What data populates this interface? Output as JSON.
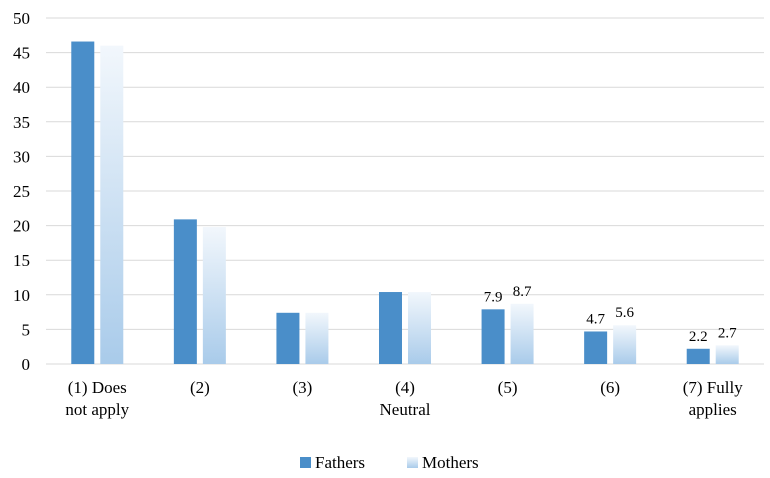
{
  "chart_data": {
    "type": "bar",
    "categories": [
      [
        "(1) Does",
        "not apply"
      ],
      [
        "(2)"
      ],
      [
        "(3)"
      ],
      [
        "(4)",
        "Neutral"
      ],
      [
        "(5)"
      ],
      [
        "(6)"
      ],
      [
        "(7) Fully",
        "applies"
      ]
    ],
    "series": [
      {
        "name": "Fathers",
        "values": [
          46.6,
          20.9,
          7.4,
          10.4,
          7.9,
          4.7,
          2.2
        ],
        "labels": [
          null,
          null,
          null,
          null,
          "7.9",
          "4.7",
          "2.2"
        ],
        "color": "#4a8ec9"
      },
      {
        "name": "Mothers",
        "values": [
          46.0,
          19.8,
          7.4,
          10.4,
          8.7,
          5.6,
          2.7
        ],
        "labels": [
          null,
          null,
          null,
          null,
          "8.7",
          "5.6",
          "2.7"
        ],
        "color_top": "#f2f7fc",
        "color_bottom": "#a9cbea"
      }
    ],
    "title": "",
    "xlabel": "",
    "ylabel": "",
    "ylim": [
      0,
      50
    ],
    "yticks": [
      0,
      5,
      10,
      15,
      20,
      25,
      30,
      35,
      40,
      45,
      50
    ],
    "grid": true,
    "legend_position": "bottom"
  }
}
